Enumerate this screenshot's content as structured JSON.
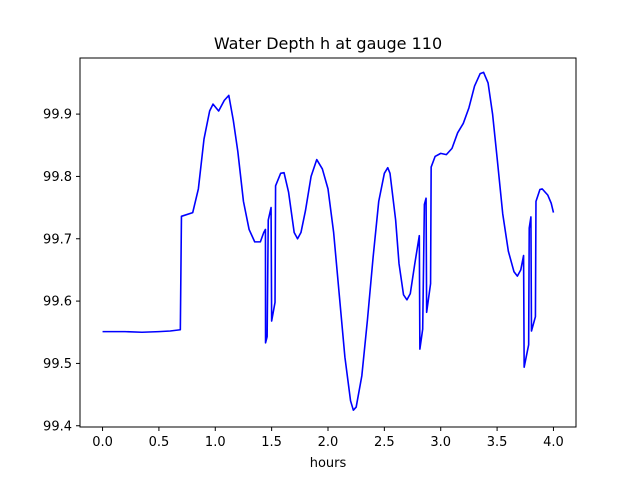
{
  "chart_data": {
    "type": "line",
    "title": "Water Depth h at gauge 110",
    "xlabel": "hours",
    "ylabel": "",
    "xlim": [
      -0.2,
      4.2
    ],
    "ylim": [
      99.398,
      99.99
    ],
    "x_ticks": [
      0.0,
      0.5,
      1.0,
      1.5,
      2.0,
      2.5,
      3.0,
      3.5,
      4.0
    ],
    "x_tick_labels": [
      "0.0",
      "0.5",
      "1.0",
      "1.5",
      "2.0",
      "2.5",
      "3.0",
      "3.5",
      "4.0"
    ],
    "y_ticks": [
      99.4,
      99.5,
      99.6,
      99.7,
      99.8,
      99.9
    ],
    "y_tick_labels": [
      "99.4",
      "99.5",
      "99.6",
      "99.7",
      "99.8",
      "99.9"
    ],
    "grid": false,
    "legend": "none",
    "series": [
      {
        "color": "#0000ff",
        "points": [
          [
            0.0,
            99.551
          ],
          [
            0.2,
            99.551
          ],
          [
            0.35,
            99.55
          ],
          [
            0.5,
            99.551
          ],
          [
            0.6,
            99.552
          ],
          [
            0.69,
            99.554
          ],
          [
            0.7,
            99.736
          ],
          [
            0.8,
            99.742
          ],
          [
            0.85,
            99.78
          ],
          [
            0.9,
            99.86
          ],
          [
            0.95,
            99.905
          ],
          [
            0.98,
            99.916
          ],
          [
            1.03,
            99.905
          ],
          [
            1.08,
            99.922
          ],
          [
            1.12,
            99.93
          ],
          [
            1.16,
            99.89
          ],
          [
            1.2,
            99.84
          ],
          [
            1.25,
            99.76
          ],
          [
            1.3,
            99.715
          ],
          [
            1.35,
            99.695
          ],
          [
            1.4,
            99.695
          ],
          [
            1.43,
            99.71
          ],
          [
            1.445,
            99.715
          ],
          [
            1.446,
            99.533
          ],
          [
            1.46,
            99.543
          ],
          [
            1.47,
            99.73
          ],
          [
            1.495,
            99.75
          ],
          [
            1.5,
            99.568
          ],
          [
            1.53,
            99.598
          ],
          [
            1.535,
            99.785
          ],
          [
            1.58,
            99.805
          ],
          [
            1.61,
            99.806
          ],
          [
            1.65,
            99.775
          ],
          [
            1.7,
            99.71
          ],
          [
            1.73,
            99.7
          ],
          [
            1.76,
            99.71
          ],
          [
            1.8,
            99.745
          ],
          [
            1.85,
            99.8
          ],
          [
            1.9,
            99.827
          ],
          [
            1.95,
            99.812
          ],
          [
            2.0,
            99.78
          ],
          [
            2.05,
            99.71
          ],
          [
            2.1,
            99.61
          ],
          [
            2.15,
            99.51
          ],
          [
            2.2,
            99.44
          ],
          [
            2.225,
            99.425
          ],
          [
            2.25,
            99.43
          ],
          [
            2.3,
            99.48
          ],
          [
            2.35,
            99.57
          ],
          [
            2.4,
            99.67
          ],
          [
            2.45,
            99.76
          ],
          [
            2.5,
            99.805
          ],
          [
            2.53,
            99.814
          ],
          [
            2.55,
            99.805
          ],
          [
            2.6,
            99.73
          ],
          [
            2.63,
            99.66
          ],
          [
            2.67,
            99.61
          ],
          [
            2.7,
            99.602
          ],
          [
            2.73,
            99.612
          ],
          [
            2.77,
            99.66
          ],
          [
            2.81,
            99.705
          ],
          [
            2.815,
            99.523
          ],
          [
            2.84,
            99.555
          ],
          [
            2.855,
            99.755
          ],
          [
            2.87,
            99.765
          ],
          [
            2.875,
            99.582
          ],
          [
            2.91,
            99.628
          ],
          [
            2.915,
            99.815
          ],
          [
            2.95,
            99.832
          ],
          [
            3.0,
            99.837
          ],
          [
            3.05,
            99.835
          ],
          [
            3.1,
            99.845
          ],
          [
            3.15,
            99.87
          ],
          [
            3.2,
            99.885
          ],
          [
            3.25,
            99.91
          ],
          [
            3.3,
            99.945
          ],
          [
            3.35,
            99.965
          ],
          [
            3.38,
            99.967
          ],
          [
            3.42,
            99.95
          ],
          [
            3.46,
            99.9
          ],
          [
            3.5,
            99.83
          ],
          [
            3.55,
            99.74
          ],
          [
            3.6,
            99.68
          ],
          [
            3.65,
            99.647
          ],
          [
            3.68,
            99.64
          ],
          [
            3.71,
            99.65
          ],
          [
            3.735,
            99.673
          ],
          [
            3.74,
            99.494
          ],
          [
            3.78,
            99.53
          ],
          [
            3.785,
            99.717
          ],
          [
            3.8,
            99.735
          ],
          [
            3.805,
            99.552
          ],
          [
            3.84,
            99.575
          ],
          [
            3.845,
            99.76
          ],
          [
            3.88,
            99.779
          ],
          [
            3.9,
            99.78
          ],
          [
            3.95,
            99.77
          ],
          [
            3.98,
            99.757
          ],
          [
            4.0,
            99.742
          ]
        ]
      }
    ]
  }
}
